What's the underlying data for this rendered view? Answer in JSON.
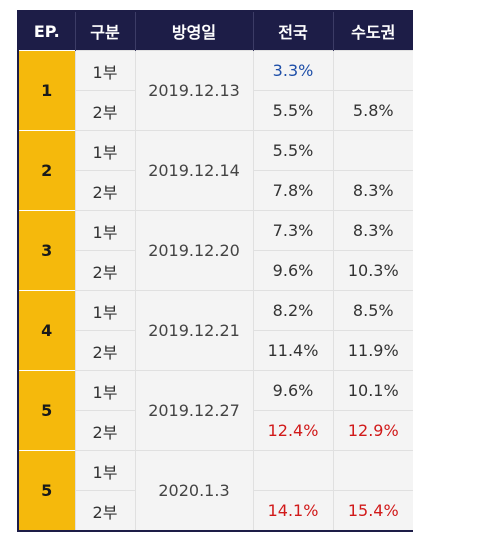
{
  "header": {
    "ep": "EP.",
    "part": "구분",
    "date": "방영일",
    "national": "전국",
    "capital": "수도권"
  },
  "colors": {
    "header_bg": "#1d1d47",
    "ep_bg": "#f5b90c",
    "highlight_red": "#d11a1a",
    "highlight_blue": "#1f4fa8"
  },
  "episodes": [
    {
      "ep": "1",
      "date": "2019.12.13",
      "parts": [
        {
          "label": "1부",
          "national": "3.3%",
          "capital": ""
        },
        {
          "label": "2부",
          "national": "5.5%",
          "capital": "5.8%"
        }
      ]
    },
    {
      "ep": "2",
      "date": "2019.12.14",
      "parts": [
        {
          "label": "1부",
          "national": "5.5%",
          "capital": ""
        },
        {
          "label": "2부",
          "national": "7.8%",
          "capital": "8.3%"
        }
      ]
    },
    {
      "ep": "3",
      "date": "2019.12.20",
      "parts": [
        {
          "label": "1부",
          "national": "7.3%",
          "capital": "8.3%"
        },
        {
          "label": "2부",
          "national": "9.6%",
          "capital": "10.3%"
        }
      ]
    },
    {
      "ep": "4",
      "date": "2019.12.21",
      "parts": [
        {
          "label": "1부",
          "national": "8.2%",
          "capital": "8.5%"
        },
        {
          "label": "2부",
          "national": "11.4%",
          "capital": "11.9%"
        }
      ]
    },
    {
      "ep": "5",
      "date": "2019.12.27",
      "parts": [
        {
          "label": "1부",
          "national": "9.6%",
          "capital": "10.1%"
        },
        {
          "label": "2부",
          "national": "12.4%",
          "capital": "12.9%"
        }
      ]
    },
    {
      "ep": "5",
      "date": "2020.1.3",
      "parts": [
        {
          "label": "1부",
          "national": "",
          "capital": ""
        },
        {
          "label": "2부",
          "national": "14.1%",
          "capital": "15.4%"
        }
      ]
    }
  ]
}
